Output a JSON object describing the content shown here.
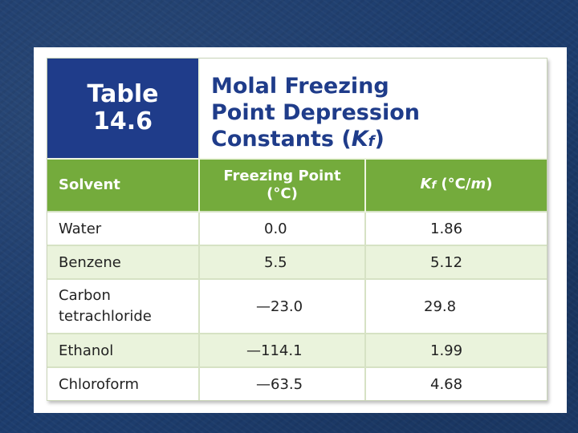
{
  "table_label": {
    "line1": "Table",
    "line2": "14.6"
  },
  "title": {
    "line1": "Molal Freezing",
    "line2": "Point Depression",
    "line3_prefix": "Constants (",
    "line3_symbol": "K",
    "line3_sub": "f",
    "line3_suffix": ")"
  },
  "headers": {
    "solvent": "Solvent",
    "freezing_point_line1": "Freezing Point",
    "freezing_point_line2": "(°C)",
    "kf_symbol": "K",
    "kf_sub": "f",
    "kf_units_prefix": " (°C/",
    "kf_units_m": "m",
    "kf_units_suffix": ")"
  },
  "rows": [
    {
      "solvent": "Water",
      "freezing_point": "0.0",
      "kf": "1.86"
    },
    {
      "solvent": "Benzene",
      "freezing_point": "5.5",
      "kf": "5.12"
    },
    {
      "solvent_line1": "Carbon",
      "solvent_line2": "tetrachloride",
      "freezing_point": "—23.0",
      "kf": "29.8"
    },
    {
      "solvent": "Ethanol",
      "freezing_point": "—114.1",
      "kf": "1.99"
    },
    {
      "solvent": "Chloroform",
      "freezing_point": "—63.5",
      "kf": "4.68"
    }
  ]
}
